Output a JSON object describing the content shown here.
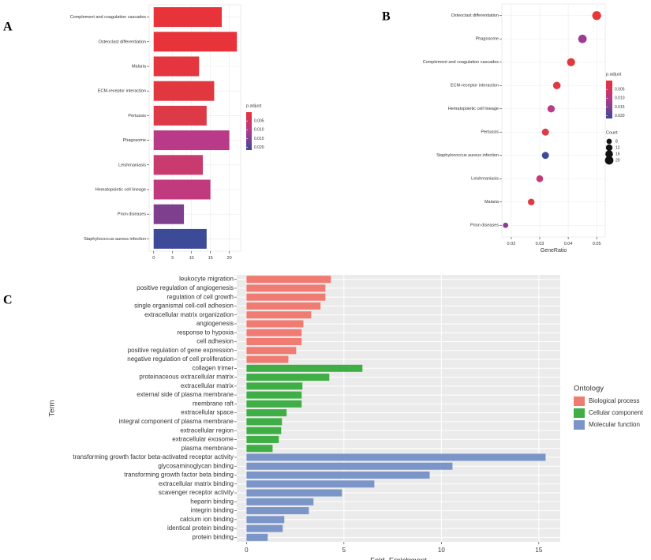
{
  "chart_data": [
    {
      "type": "bar",
      "label": "A",
      "categories": [
        "Complement and coagulation cascades",
        "Osteoclast differentiation",
        "Malaria",
        "ECM-receptor interaction",
        "Pertussis",
        "Phagosome",
        "Leishmaniasis",
        "Hematopoietic cell lineage",
        "Prion diseases",
        "Staphylococcus aureus infection"
      ],
      "values": [
        18,
        22,
        12,
        16,
        14,
        20,
        13,
        15,
        8,
        14
      ],
      "colors": [
        "#e8333a",
        "#e8333a",
        "#e5363f",
        "#e1373f",
        "#dd3a48",
        "#b93a88",
        "#c93a6e",
        "#c13a7e",
        "#7e3f8e",
        "#3c4a98"
      ],
      "xlim": [
        -1.2,
        23
      ],
      "xticks": [
        0,
        5,
        10,
        15,
        20
      ],
      "grid": true,
      "colorbar": {
        "title": "p.adjust",
        "clim": [
          0,
          0.0215
        ],
        "colors": [
          "#e8323a",
          "#b03a8a",
          "#3c4a9a"
        ],
        "ticks": [
          0.005,
          {
            "value": 0.01,
            "label": "0.010"
          },
          0.015,
          {
            "value": 0.02,
            "label": "0.020"
          }
        ]
      }
    },
    {
      "type": "scatter",
      "label": "B",
      "xlabel": "GeneRatio",
      "categories": [
        "Osteoclast differentiation",
        "Phagosome",
        "Complement and coagulation cascades",
        "ECM-receptor interaction",
        "Hematopoietic cell lineage",
        "Pertussis",
        "Staphylococcus aureus infection",
        "Leishmaniasis",
        "Malaria",
        "Prion diseases"
      ],
      "x": [
        0.05,
        0.045,
        0.041,
        0.036,
        0.034,
        0.032,
        0.032,
        0.03,
        0.027,
        0.018
      ],
      "sizes": [
        22,
        20,
        18,
        16,
        15,
        14,
        14,
        13,
        12,
        8
      ],
      "colors": [
        "#e6383c",
        "#9b3b94",
        "#e1383f",
        "#de3a45",
        "#b83c88",
        "#dc3a48",
        "#3d4a9a",
        "#c43a78",
        "#e1383f",
        "#8e3c92"
      ],
      "xlim": [
        0.0167,
        0.053
      ],
      "xticks": [
        0.02,
        0.03,
        0.04,
        0.05
      ],
      "grid": true,
      "colorbar": {
        "title": "p.adjust",
        "clim": [
          0,
          0.0215
        ],
        "colors": [
          "#e8323a",
          "#b03a8a",
          "#3c4a9a"
        ],
        "ticks": [
          0.005,
          {
            "value": 0.01,
            "label": "0.010"
          },
          0.015,
          {
            "value": 0.02,
            "label": "0.020"
          }
        ]
      },
      "size_legend": {
        "title": "Count",
        "values": [
          8,
          12,
          16,
          20
        ]
      }
    },
    {
      "type": "bar",
      "label": "C",
      "xlabel": "Fold_Enrichment",
      "ylabel": "Term",
      "legend_title": "Ontology",
      "xlim": [
        -0.5,
        16.1
      ],
      "xticks": [
        0,
        5,
        10,
        15
      ],
      "grid": true,
      "background": "#ebebeb",
      "series": [
        {
          "name": "Biological process",
          "color": "#f07b72",
          "categories": [
            "leukocyte migration",
            "positive regulation of angiogenesis",
            "regulation of cell growth",
            "single organismal cell-cell adhesion",
            "extracellular matrix organization",
            "angiogenesis",
            "response to hypoxia",
            "cell adhesion",
            "positive regulation of gene expression",
            "negative regulation of cell proliferation"
          ],
          "values": [
            4.33,
            4.05,
            4.05,
            3.8,
            3.32,
            2.92,
            2.83,
            2.83,
            2.55,
            2.15
          ]
        },
        {
          "name": "Cellular component",
          "color": "#3fae45",
          "categories": [
            "collagen trimer",
            "proteinaceous extracellular matrix",
            "extracellular matrix",
            "external side of plasma membrane",
            "membrane raft",
            "extracellular space",
            "integral component of plasma membrane",
            "extracellular region",
            "extracellular exosome",
            "plasma membrane"
          ],
          "values": [
            5.95,
            4.25,
            2.87,
            2.83,
            2.83,
            2.06,
            1.82,
            1.78,
            1.66,
            1.34
          ]
        },
        {
          "name": "Molecular function",
          "color": "#7b95c9",
          "categories": [
            "transforming growth factor beta-activated receptor activity",
            "glycosaminoglycan binding",
            "transforming growth factor beta binding",
            "extracellular matrix binding",
            "scavenger receptor activity",
            "heparin binding",
            "integrin binding",
            "calcium ion binding",
            "identical protein binding",
            "protein binding"
          ],
          "values": [
            15.35,
            10.57,
            9.4,
            6.56,
            4.9,
            3.44,
            3.2,
            1.94,
            1.86,
            1.09
          ]
        }
      ]
    }
  ]
}
